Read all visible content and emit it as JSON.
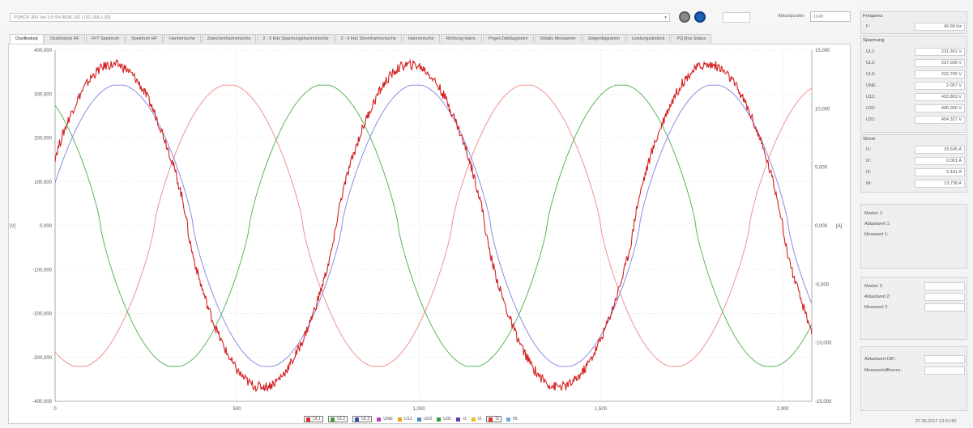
{
  "header": {
    "device": "PQBOX 300 Ver.3.0 SN 8536.161 [192.168.1.93]",
    "rate_label": "Abtastpunkte:",
    "rate_value": "1040"
  },
  "tabs": [
    {
      "label": "Oszilloskop",
      "active": true
    },
    {
      "label": "Oszilloskop HF"
    },
    {
      "label": "FFT Spektrum"
    },
    {
      "label": "Spektrum HF"
    },
    {
      "label": "Harmonische"
    },
    {
      "label": "Zwischenharmonische"
    },
    {
      "label": "2 - 9 kHz Spannungsharmonische"
    },
    {
      "label": "2 - 9 kHz Stromharmonische"
    },
    {
      "label": "Harmonische"
    },
    {
      "label": "Richtung Harm."
    },
    {
      "label": "Pegel-Zeitdiagramm"
    },
    {
      "label": "Details Messwerte"
    },
    {
      "label": "Zeigerdiagramm"
    },
    {
      "label": "Leistungsdreieck"
    },
    {
      "label": "PQ-Box Status"
    }
  ],
  "chart_data": {
    "type": "line",
    "xlim": [
      0,
      2080
    ],
    "y_left": {
      "label": "[V]",
      "lim": [
        -400000,
        400000
      ],
      "ticks": [
        "400,000",
        "300,000",
        "200,000",
        "100,000",
        "0,000",
        "-100,000",
        "-200,000",
        "-300,000",
        "-400,000"
      ]
    },
    "y_right": {
      "label": "[A]",
      "lim": [
        -15000,
        15000
      ],
      "ticks": [
        "15,000",
        "10,000",
        "5,000",
        "0,000",
        "-5,000",
        "-10,000",
        "-15,000"
      ]
    },
    "x_ticks": [
      {
        "v": 0,
        "label": "0"
      },
      {
        "v": 500,
        "label": "500"
      },
      {
        "v": 1000,
        "label": "1,000"
      },
      {
        "v": 1500,
        "label": "1,500"
      },
      {
        "v": 2000,
        "label": "2,000"
      }
    ],
    "grid": true,
    "series": [
      {
        "name": "UL1",
        "color": "#f4908e",
        "axis": "left",
        "kind": "sine",
        "amp": 322000,
        "period": 818,
        "phase_deg": -120
      },
      {
        "name": "UL2",
        "color": "#5cb65a",
        "axis": "left",
        "kind": "sine",
        "amp": 322000,
        "period": 818,
        "phase_deg": 125
      },
      {
        "name": "UL3",
        "color": "#8c8ce6",
        "axis": "left",
        "kind": "sine",
        "amp": 322000,
        "period": 818,
        "phase_deg": 13
      },
      {
        "name": "I1",
        "color": "#d42020",
        "axis": "right",
        "kind": "noisy",
        "amp": 13800,
        "period": 818,
        "phase_deg": 20
      }
    ]
  },
  "legend": [
    {
      "name": "UL1",
      "color": "#d93030",
      "selected": true
    },
    {
      "name": "UL2",
      "color": "#3aa03a",
      "selected": true
    },
    {
      "name": "UL3",
      "color": "#2c4fa8",
      "selected": true
    },
    {
      "name": "UNE",
      "color": "#c03bc0"
    },
    {
      "name": "U12",
      "color": "#f0a020"
    },
    {
      "name": "U23",
      "color": "#4a86c8"
    },
    {
      "name": "U31",
      "color": "#3a9a3a"
    },
    {
      "name": "I1",
      "color": "#6a3aa8"
    },
    {
      "name": "I2",
      "color": "#f0c020"
    },
    {
      "name": "I3",
      "color": "#d93030",
      "selected": true
    },
    {
      "name": "IN",
      "color": "#6ea8e8"
    }
  ],
  "sidebar": {
    "frequency": {
      "title": "Frequenz",
      "rows": [
        {
          "label": "F:",
          "value": "49.98 Hz"
        }
      ]
    },
    "voltage": {
      "title": "Spannung",
      "rows": [
        {
          "label": "UL1:",
          "value": "231.391 V"
        },
        {
          "label": "UL2:",
          "value": "237.036 V"
        },
        {
          "label": "UL3:",
          "value": "232.755 V"
        },
        {
          "label": "UNE:",
          "value": "2.057 V"
        },
        {
          "label": "U12:",
          "value": "403.883 V"
        },
        {
          "label": "U23:",
          "value": "406.090 V"
        },
        {
          "label": "U31:",
          "value": "404.327 V"
        }
      ]
    },
    "current": {
      "title": "Strom",
      "rows": [
        {
          "label": "I1:",
          "value": "15.645 A"
        },
        {
          "label": "I2:",
          "value": "0.061 A"
        },
        {
          "label": "I3:",
          "value": "0.181 A"
        },
        {
          "label": "IN:",
          "value": "13.738 A"
        }
      ]
    },
    "marker1": [
      {
        "label": "Marker 1:"
      },
      {
        "label": "Abtastwert 1:"
      },
      {
        "label": "Messwert 1:"
      }
    ],
    "marker2": [
      {
        "label": "Marker 2:"
      },
      {
        "label": "Abtastwert 2:"
      },
      {
        "label": "Messwert 2:"
      }
    ],
    "diff": [
      {
        "label": "Abtastwert-Diff.:"
      },
      {
        "label": "Messwertdifferenz:"
      }
    ],
    "timestamp": "27.05.2017 13:51:50"
  }
}
